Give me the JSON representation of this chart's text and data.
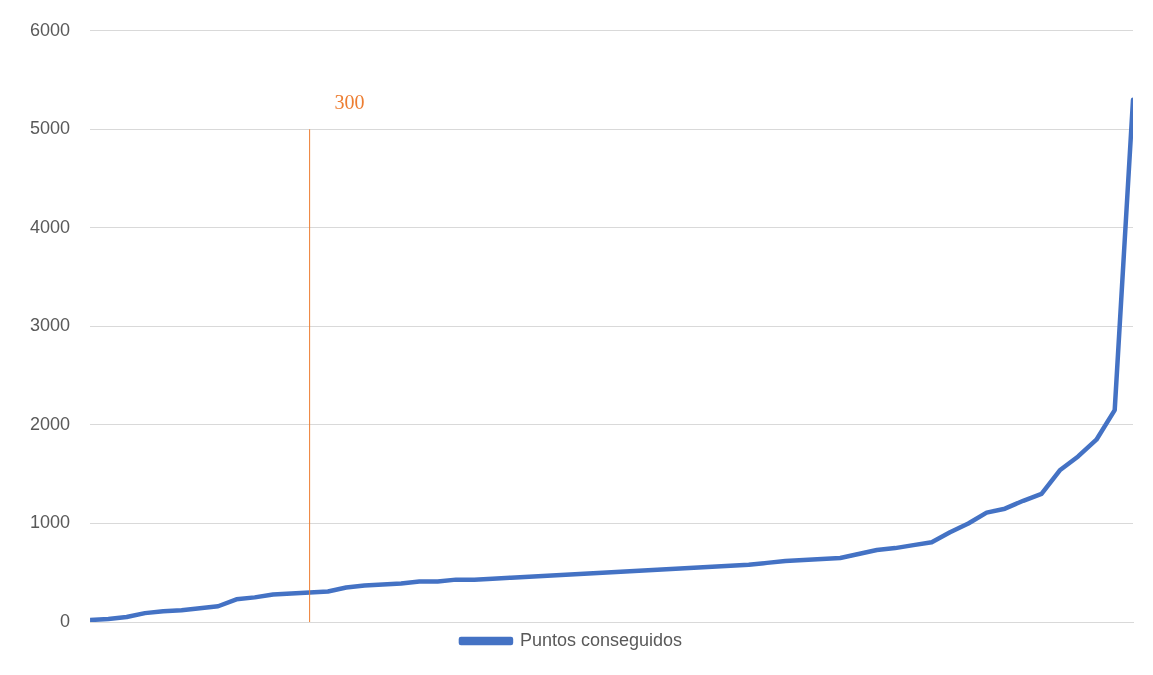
{
  "chart_data": {
    "type": "line",
    "categories": [
      null,
      null,
      null,
      null,
      null,
      null,
      null,
      null,
      null,
      null,
      null,
      null,
      null,
      null,
      null,
      null,
      null,
      null,
      null,
      null,
      null,
      null,
      null,
      null,
      null,
      null,
      null,
      null,
      null,
      null,
      null,
      null,
      null,
      null,
      null,
      null,
      null,
      null,
      null,
      null,
      null,
      null,
      null,
      null,
      null,
      null,
      null,
      null,
      null,
      null,
      null,
      null,
      null,
      null,
      null,
      null,
      null,
      null
    ],
    "series": [
      {
        "name": "Puntos conseguidos",
        "color": "#4472c4",
        "values": [
          20,
          30,
          50,
          90,
          110,
          120,
          140,
          160,
          230,
          250,
          280,
          290,
          300,
          310,
          350,
          370,
          380,
          390,
          410,
          410,
          430,
          430,
          440,
          450,
          460,
          470,
          480,
          490,
          500,
          510,
          520,
          530,
          540,
          550,
          560,
          570,
          580,
          600,
          620,
          630,
          640,
          650,
          690,
          730,
          750,
          780,
          810,
          910,
          1000,
          1110,
          1150,
          1230,
          1300,
          1540,
          1680,
          1850,
          2150,
          5300
        ]
      }
    ],
    "ylim": [
      0,
      6000
    ],
    "yticks": [
      0,
      1000,
      2000,
      3000,
      4000,
      5000,
      6000
    ],
    "grid": "y",
    "legend": "bottom",
    "tick_labels": "y",
    "marker": "none",
    "annotations": [
      "300"
    ]
  }
}
